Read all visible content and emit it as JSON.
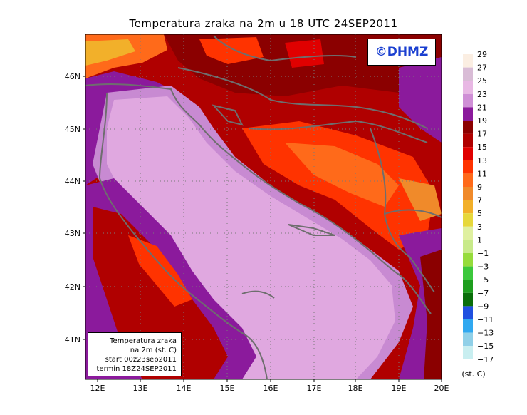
{
  "title": "Temperatura zraka na 2m u 18 UTC 24SEP2011",
  "logo_text": "©DHMZ",
  "info": {
    "line1": "Temperatura zraka",
    "line2": "na 2m (st. C)",
    "line3": "start 00z23sep2011",
    "line4": "termin 18Z24SEP2011"
  },
  "axes": {
    "lon_ticks": [
      "12E",
      "13E",
      "14E",
      "15E",
      "16E",
      "17E",
      "18E",
      "19E",
      "20E"
    ],
    "lat_ticks": [
      "46N",
      "45N",
      "44N",
      "43N",
      "42N",
      "41N"
    ]
  },
  "legend": {
    "unit": "(st. C)",
    "levels": [
      "29",
      "27",
      "25",
      "23",
      "21",
      "19",
      "17",
      "15",
      "13",
      "11",
      "9",
      "7",
      "5",
      "3",
      "1",
      "−1",
      "−3",
      "−5",
      "−7",
      "−9",
      "−11",
      "−13",
      "−15",
      "−17"
    ],
    "colors": [
      "#fbeee2",
      "#d9bcd6",
      "#e8b8e4",
      "#cf8fd6",
      "#8b1a9c",
      "#8b0000",
      "#b00000",
      "#e00000",
      "#ff3300",
      "#ff6a1a",
      "#f08a2a",
      "#f2b02a",
      "#e6d83c",
      "#dff0a0",
      "#c8ea8a",
      "#96dc3c",
      "#3cc83c",
      "#1e9e1e",
      "#0a6e0a",
      "#2050e0",
      "#30a8f0",
      "#90d0e8",
      "#c8eef0",
      "#ffffff"
    ]
  },
  "colors": {
    "sea_light": "#e0a8e0",
    "sea_mid": "#c88ad2",
    "border_grey": "#6e6e6e"
  }
}
